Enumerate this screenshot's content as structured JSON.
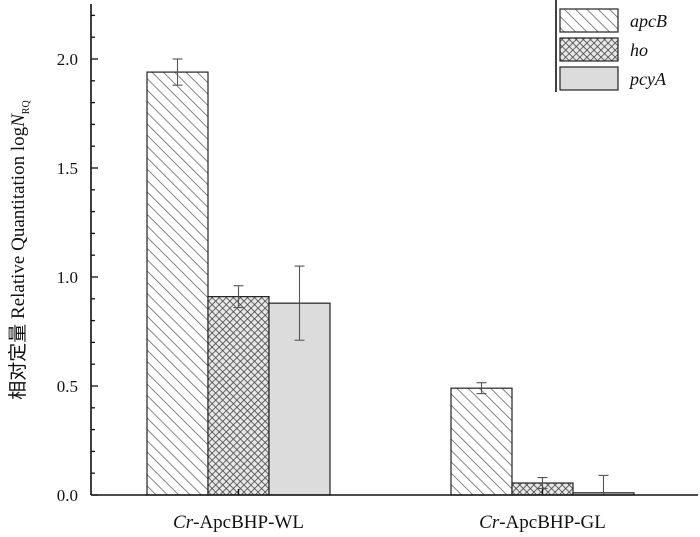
{
  "chart_data": {
    "type": "bar",
    "ylabel_prefix": "相对定量 Relative Quantitation log",
    "ylabel_var": "N",
    "ylabel_sub": "RQ",
    "ylim": [
      0,
      2.2
    ],
    "yticks": [
      "0.0",
      "0.5",
      "1.0",
      "1.5",
      "2.0"
    ],
    "categories": [
      {
        "prefix": "Cr",
        "rest": "-ApcBHP-WL"
      },
      {
        "prefix": "Cr",
        "rest": "-ApcBHP-GL"
      }
    ],
    "legend_placement": "top-right",
    "series": [
      {
        "name": "apcB",
        "pattern": "diagonal-hatch",
        "color": "#ffffff",
        "values": [
          1.94,
          0.49
        ],
        "errors": [
          0.06,
          0.025
        ]
      },
      {
        "name": "ho",
        "pattern": "crosshatch",
        "color": "#9a9a9a",
        "values": [
          0.91,
          0.055
        ],
        "errors": [
          0.05,
          0.025
        ]
      },
      {
        "name": "pcyA",
        "pattern": "solid",
        "color": "#dcdcdc",
        "values": [
          0.88,
          0.01
        ],
        "errors": [
          0.17,
          0.08
        ]
      }
    ]
  }
}
